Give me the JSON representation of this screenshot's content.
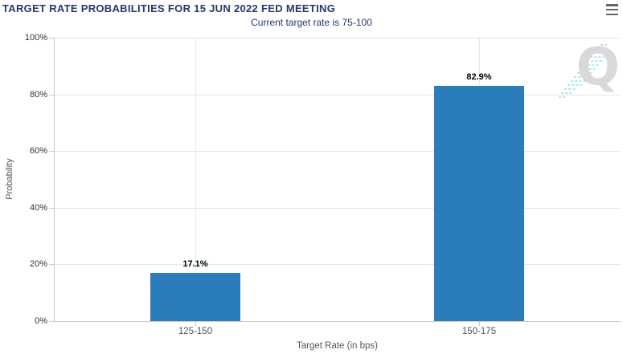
{
  "header": {
    "menu_tooltip": "Chart context menu"
  },
  "chart_data": {
    "type": "bar",
    "title": "TARGET RATE PROBABILITIES FOR 15 JUN 2022 FED MEETING",
    "subtitle": "Current target rate is 75-100",
    "categories": [
      "125-150",
      "150-175"
    ],
    "values": [
      17.1,
      82.9
    ],
    "value_labels": [
      "17.1%",
      "82.9%"
    ],
    "xlabel": "Target Rate (in bps)",
    "ylabel": "Probability",
    "ylim": [
      0,
      100
    ],
    "ytick_step": 20,
    "ytick_labels": [
      "0%",
      "20%",
      "40%",
      "60%",
      "80%",
      "100%"
    ],
    "grid": true,
    "legend": "none",
    "watermark_letter": "Q"
  },
  "colors": {
    "title": "#26386b",
    "subtitle": "#26386b",
    "bar": "#2b7cba",
    "grid": "#e6e6e6",
    "axis_line": "#c9c9c9",
    "tick_label": "#333333",
    "axis_label": "#555555",
    "data_label": "#000000",
    "menu_icon": "#666666",
    "watermark_q": "#d9d9d9",
    "watermark_lines": "#8fd6e4"
  }
}
